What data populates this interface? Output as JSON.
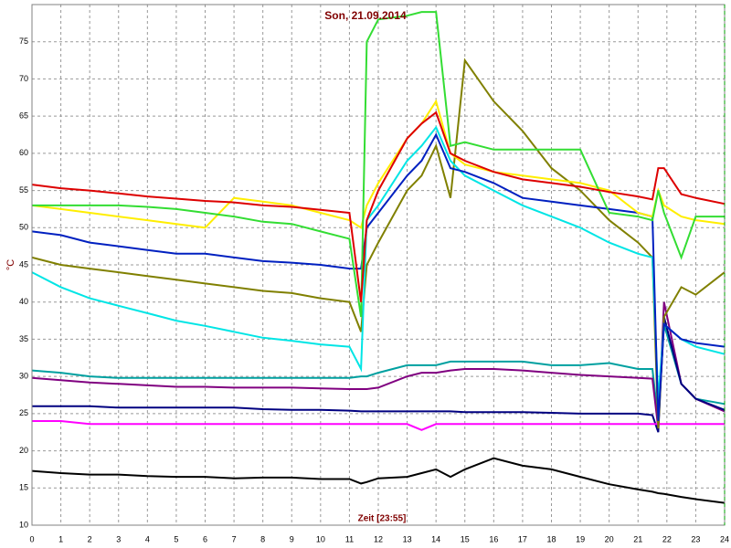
{
  "chart_data": {
    "type": "line",
    "title": "Son, 21.09.2014",
    "x_label": "Zeit [23:55]",
    "y_label": "°C",
    "x": [
      0,
      1,
      2,
      3,
      4,
      5,
      6,
      7,
      8,
      9,
      10,
      11,
      11.4,
      11.6,
      12,
      13,
      13.5,
      14,
      14.5,
      15,
      16,
      17,
      18,
      19,
      20,
      21,
      21.5,
      21.7,
      21.9,
      22.5,
      23,
      24
    ],
    "series": [
      {
        "color": "#00a0a0",
        "values": [
          30.8,
          30.5,
          30,
          29.8,
          29.8,
          29.8,
          29.8,
          29.8,
          29.8,
          29.8,
          29.8,
          29.8,
          30,
          30,
          30.5,
          31.5,
          31.5,
          31.5,
          32,
          32,
          32,
          32,
          31.5,
          31.5,
          31.8,
          31,
          31,
          24,
          37,
          29,
          27,
          26.3
        ]
      },
      {
        "color": "#800080",
        "values": [
          29.8,
          29.5,
          29.2,
          29,
          28.8,
          28.6,
          28.6,
          28.5,
          28.5,
          28.5,
          28.4,
          28.3,
          28.3,
          28.3,
          28.5,
          30,
          30.5,
          30.5,
          30.8,
          31,
          31,
          30.8,
          30.5,
          30.2,
          30,
          29.8,
          29.7,
          23,
          40,
          29,
          27,
          25.3
        ]
      },
      {
        "color": "#000080",
        "values": [
          26,
          26,
          26,
          25.8,
          25.8,
          25.8,
          25.8,
          25.8,
          25.6,
          25.5,
          25.5,
          25.4,
          25.3,
          25.3,
          25.3,
          25.3,
          25.3,
          25.3,
          25.3,
          25.2,
          25.2,
          25.2,
          25.1,
          25,
          25,
          25,
          24.8,
          22.5,
          38,
          29,
          27,
          25.5
        ]
      },
      {
        "color": "#ff00ff",
        "values": [
          24,
          24,
          23.6,
          23.6,
          23.6,
          23.6,
          23.6,
          23.6,
          23.6,
          23.6,
          23.6,
          23.6,
          23.6,
          23.6,
          23.6,
          23.6,
          22.8,
          23.6,
          23.6,
          23.6,
          23.6,
          23.6,
          23.6,
          23.6,
          23.6,
          23.6,
          23.6,
          23.6,
          23.6,
          23.6,
          23.6,
          23.6
        ]
      },
      {
        "color": "#000000",
        "values": [
          17.3,
          17,
          16.8,
          16.8,
          16.6,
          16.5,
          16.5,
          16.3,
          16.4,
          16.4,
          16.2,
          16.2,
          15.6,
          15.8,
          16.3,
          16.5,
          17,
          17.5,
          16.5,
          17.5,
          19,
          18,
          17.5,
          16.5,
          15.5,
          14.8,
          14.5,
          14.3,
          14.2,
          13.8,
          13.5,
          13
        ]
      },
      {
        "color": "#808000",
        "values": [
          46,
          45,
          44.5,
          44,
          43.5,
          43,
          42.5,
          42,
          41.5,
          41.2,
          40.5,
          40,
          36,
          45,
          48,
          55,
          57,
          61,
          54,
          72.5,
          67,
          63,
          58,
          55,
          51,
          48,
          46,
          23,
          38,
          42,
          41,
          44
        ]
      },
      {
        "color": "#00e5e5",
        "values": [
          44,
          42,
          40.5,
          39.5,
          38.5,
          37.5,
          36.8,
          36,
          35.2,
          34.8,
          34.3,
          34,
          31,
          51,
          53,
          59,
          61,
          63.5,
          59,
          57,
          55,
          53,
          51.5,
          50,
          48,
          46.5,
          46,
          27,
          37,
          35,
          34,
          33
        ]
      },
      {
        "color": "#0020c0",
        "values": [
          49.5,
          49,
          48,
          47.5,
          47,
          46.5,
          46.5,
          46,
          45.5,
          45.3,
          45,
          44.5,
          44.5,
          50,
          52,
          57,
          59,
          62.5,
          58,
          57.5,
          56,
          54,
          53.5,
          53,
          52.5,
          52,
          51.5,
          24,
          37,
          35,
          34.5,
          34
        ]
      },
      {
        "color": "#ffee00",
        "values": [
          53,
          52.5,
          52,
          51.5,
          51,
          50.5,
          50,
          54,
          53.5,
          53,
          52,
          51,
          50,
          53,
          56,
          62,
          64,
          67,
          60,
          58.5,
          57.5,
          57,
          56.5,
          56,
          55,
          52,
          51.5,
          55,
          53,
          51.5,
          51,
          50.5
        ]
      },
      {
        "color": "#33dd33",
        "values": [
          53,
          53,
          53,
          53,
          52.8,
          52.5,
          52,
          51.5,
          50.8,
          50.5,
          49.5,
          48.5,
          38,
          75,
          78,
          78.5,
          79,
          79,
          61,
          61.5,
          60.5,
          60.5,
          60.5,
          60.5,
          52,
          51.5,
          51,
          55,
          52,
          46,
          51.5,
          51.5
        ]
      },
      {
        "color": "#dd0000",
        "values": [
          55.8,
          55.3,
          55,
          54.6,
          54.2,
          53.9,
          53.6,
          53.4,
          53,
          52.8,
          52.4,
          52,
          40,
          51,
          55,
          62,
          64,
          65.5,
          60,
          59,
          57.5,
          56.5,
          56,
          55.5,
          54.8,
          54.2,
          53.8,
          58,
          58,
          54.5,
          54,
          53.2
        ]
      }
    ],
    "xlim": [
      0,
      24
    ],
    "xticks": [
      0,
      1,
      2,
      3,
      4,
      5,
      6,
      7,
      8,
      9,
      10,
      11,
      12,
      13,
      14,
      15,
      16,
      17,
      18,
      19,
      20,
      21,
      22,
      23,
      24
    ],
    "ylim": [
      10,
      80
    ],
    "yticks": [
      10,
      15,
      20,
      25,
      30,
      35,
      40,
      45,
      50,
      55,
      60,
      65,
      70,
      75
    ],
    "grid": true
  }
}
